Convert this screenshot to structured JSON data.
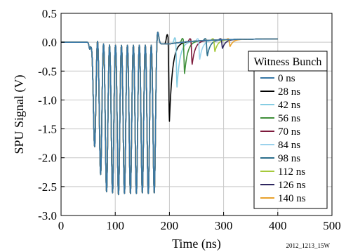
{
  "chart_data": {
    "type": "line",
    "title": "",
    "xlabel": "Time (ns)",
    "ylabel": "SPU Signal (V)",
    "xlim": [
      0,
      500
    ],
    "ylim": [
      -3.0,
      0.5
    ],
    "xticks": [
      0,
      100,
      200,
      300,
      400,
      500
    ],
    "yticks": [
      0.5,
      0.0,
      -0.5,
      -1.0,
      -1.5,
      -2.0,
      -2.5,
      -3.0
    ],
    "xtick_labels": [
      "0",
      "100",
      "200",
      "300",
      "400",
      "500"
    ],
    "ytick_labels": [
      "0.5",
      "0.0",
      "-0.5",
      "-1.0",
      "-1.5",
      "-2.0",
      "-2.5",
      "-3.0"
    ],
    "grid": true,
    "legend_position": "right",
    "legend_title": "Witness Bunch",
    "footnote": "2012_1213_15W",
    "main_train": {
      "start_time": 56,
      "end_time": 176,
      "pulse_times": [
        62,
        73,
        84,
        95,
        106,
        117,
        128,
        139,
        150,
        161,
        172
      ],
      "pulse_minima": [
        -1.8,
        -2.3,
        -2.6,
        -2.62,
        -2.65,
        -2.63,
        -2.63,
        -2.63,
        -2.62,
        -2.63,
        -2.62
      ],
      "pulse_overshoot": [
        0.28,
        0.28,
        0.28,
        0.28,
        0.28,
        0.28,
        0.28,
        0.28,
        0.28,
        0.28,
        0.28
      ]
    },
    "series": [
      {
        "name": "0 ns",
        "color": "#3777a6",
        "witness_time": null,
        "witness_peak": null
      },
      {
        "name": "28 ns",
        "color": "#000000",
        "witness_time": 200,
        "witness_peak": -1.35
      },
      {
        "name": "42 ns",
        "color": "#86cde3",
        "witness_time": 214,
        "witness_peak": -0.77
      },
      {
        "name": "56 ns",
        "color": "#3f8f3a",
        "witness_time": 228,
        "witness_peak": -0.55
      },
      {
        "name": "70 ns",
        "color": "#7d1a3c",
        "witness_time": 242,
        "witness_peak": -0.4
      },
      {
        "name": "84 ns",
        "color": "#9bd2ec",
        "witness_time": 256,
        "witness_peak": -0.32
      },
      {
        "name": "98 ns",
        "color": "#2c6e8c",
        "witness_time": 270,
        "witness_peak": -0.27
      },
      {
        "name": "112 ns",
        "color": "#a6c93b",
        "witness_time": 284,
        "witness_peak": -0.2
      },
      {
        "name": "126 ns",
        "color": "#2e2760",
        "witness_time": 298,
        "witness_peak": -0.15
      },
      {
        "name": "140 ns",
        "color": "#e8a12c",
        "witness_time": 312,
        "witness_peak": -0.12
      }
    ]
  }
}
